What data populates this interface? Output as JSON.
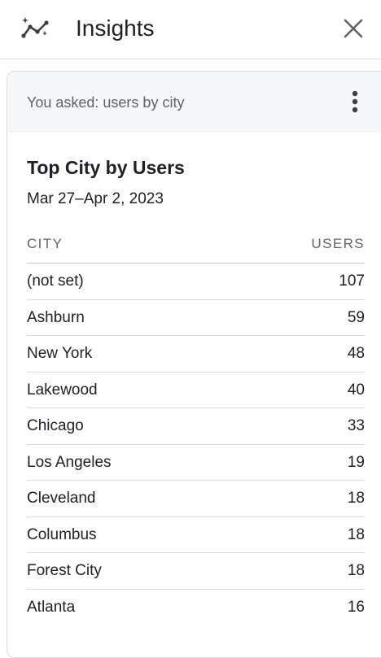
{
  "header": {
    "title": "Insights",
    "icon": "insights-sparkle-trend-icon",
    "close_icon": "close-icon"
  },
  "query": {
    "text": "You asked: users by city",
    "menu_icon": "more-vert-icon"
  },
  "report": {
    "title": "Top City by Users",
    "date_range": "Mar 27–Apr 2, 2023",
    "columns": {
      "city": "CITY",
      "users": "USERS"
    },
    "rows": [
      {
        "city": "(not set)",
        "users": "107"
      },
      {
        "city": "Ashburn",
        "users": "59"
      },
      {
        "city": "New York",
        "users": "48"
      },
      {
        "city": "Lakewood",
        "users": "40"
      },
      {
        "city": "Chicago",
        "users": "33"
      },
      {
        "city": "Los Angeles",
        "users": "19"
      },
      {
        "city": "Cleveland",
        "users": "18"
      },
      {
        "city": "Columbus",
        "users": "18"
      },
      {
        "city": "Forest City",
        "users": "18"
      },
      {
        "city": "Atlanta",
        "users": "16"
      }
    ]
  },
  "colors": {
    "text_primary": "#202124",
    "text_secondary": "#5f6368",
    "divider": "#dadce0",
    "query_bar_bg": "#f6f7f9"
  }
}
